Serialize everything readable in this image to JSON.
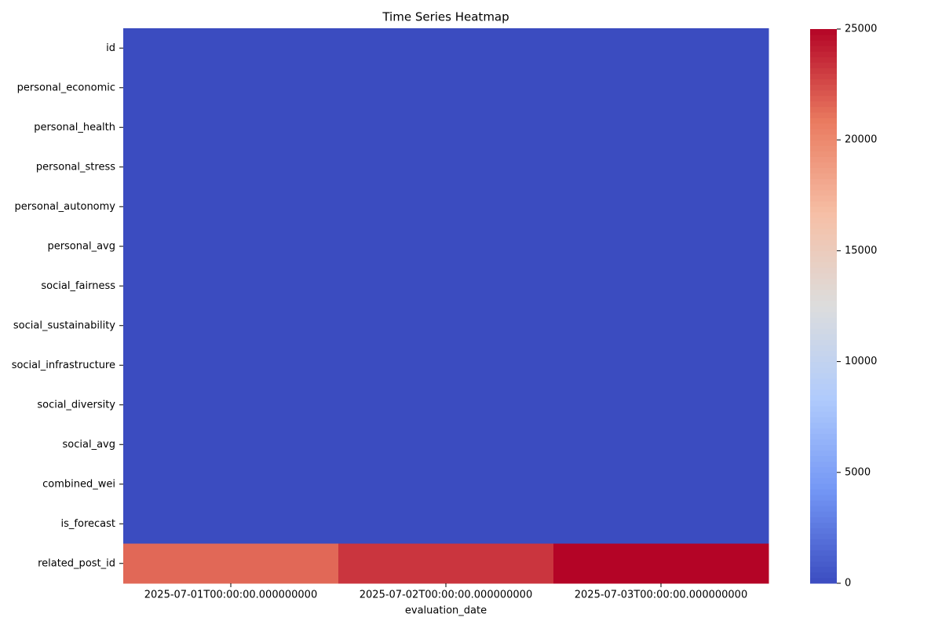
{
  "chart_data": {
    "type": "heatmap",
    "title": "Time Series Heatmap",
    "x_label": "evaluation_date",
    "x_categories": [
      "2025-07-01T00:00:00.000000000",
      "2025-07-02T00:00:00.000000000",
      "2025-07-03T00:00:00.000000000"
    ],
    "y_categories": [
      "id",
      "personal_economic",
      "personal_health",
      "personal_stress",
      "personal_autonomy",
      "personal_avg",
      "social_fairness",
      "social_sustainability",
      "social_infrastructure",
      "social_diversity",
      "social_avg",
      "combined_wei",
      "is_forecast",
      "related_post_id"
    ],
    "values": [
      [
        0,
        0,
        0
      ],
      [
        0,
        0,
        0
      ],
      [
        0,
        0,
        0
      ],
      [
        0,
        0,
        0
      ],
      [
        0,
        0,
        0
      ],
      [
        0,
        0,
        0
      ],
      [
        0,
        0,
        0
      ],
      [
        0,
        0,
        0
      ],
      [
        0,
        0,
        0
      ],
      [
        0,
        0,
        0
      ],
      [
        0,
        0,
        0
      ],
      [
        0,
        0,
        0
      ],
      [
        0,
        0,
        0
      ],
      [
        21500,
        23300,
        25000
      ]
    ],
    "colorscale": [
      "#3b4cc0",
      "#7396f5",
      "#b0cbfc",
      "#dcdddd",
      "#f6bfa6",
      "#ea7b60",
      "#b40426"
    ],
    "clim": [
      0,
      25000
    ],
    "cticks": [
      0,
      5000,
      10000,
      15000,
      20000,
      25000
    ]
  }
}
